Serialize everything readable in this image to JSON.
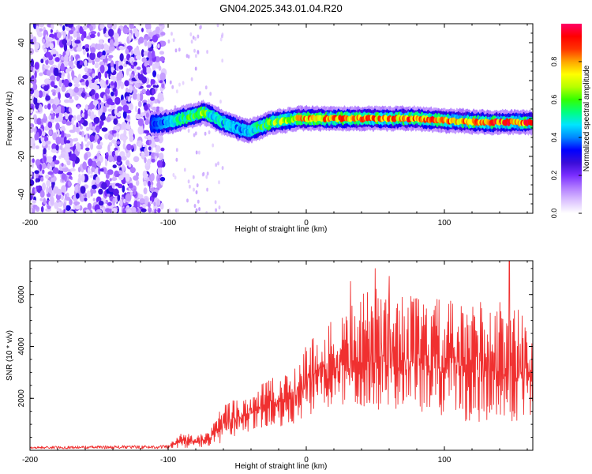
{
  "title": "GN04.2025.343.01.04.R20",
  "chart_data": [
    {
      "type": "heatmap",
      "title": "GN04.2025.343.01.04.R20",
      "xlabel": "Height of straight line (km)",
      "ylabel": "Frequency (Hz)",
      "xlim": [
        -200,
        164
      ],
      "ylim": [
        -50,
        50
      ],
      "x_ticks": [
        -200,
        -100,
        0,
        100
      ],
      "y_ticks": [
        -40,
        -20,
        0,
        20,
        40
      ],
      "colorbar": {
        "label": "Normalized spectral amplitude",
        "range": [
          0,
          1
        ],
        "ticks": [
          0.0,
          0.2,
          0.4,
          0.6,
          0.8
        ],
        "colors": [
          "#ffffff",
          "#dcc3ff",
          "#b27dff",
          "#7a2dff",
          "#3a0dd8",
          "#0000ff",
          "#0088ff",
          "#00e5ff",
          "#00ff7f",
          "#33ff00",
          "#b7ff00",
          "#ffff00",
          "#ffa500",
          "#ff3300",
          "#ff0000",
          "#ff0066"
        ]
      },
      "ridge": {
        "x": [
          -112,
          -100,
          -90,
          -80,
          -75,
          -70,
          -60,
          -50,
          -42,
          -35,
          -25,
          -15,
          -5,
          0,
          20,
          50,
          80,
          100,
          130,
          164
        ],
        "frequency": [
          -3,
          -2,
          0,
          2,
          3,
          2,
          -2,
          -5,
          -7,
          -5,
          -2,
          -1,
          0,
          0,
          0,
          0,
          0,
          -1,
          -2,
          -2
        ],
        "amplitude": [
          0.35,
          0.45,
          0.55,
          0.6,
          0.7,
          0.55,
          0.5,
          0.45,
          0.45,
          0.55,
          0.65,
          0.7,
          0.8,
          0.8,
          0.85,
          0.85,
          0.88,
          0.85,
          0.9,
          0.9
        ]
      },
      "noise_region": {
        "x_from": -200,
        "x_to": -103,
        "amplitude": [
          0.05,
          0.3
        ]
      }
    },
    {
      "type": "line",
      "xlabel": "Height of straight line (km)",
      "ylabel": "SNR (10 * v/v)",
      "xlim": [
        -200,
        164
      ],
      "ylim": [
        0,
        7300
      ],
      "x_ticks": [
        -200,
        -100,
        0,
        100
      ],
      "y_ticks": [
        2000,
        4000,
        6000
      ],
      "series": [
        {
          "name": "SNR",
          "color": "#f03030",
          "envelope_x": [
            -200,
            -100,
            -90,
            -80,
            -70,
            -60,
            -50,
            -40,
            -30,
            -20,
            -10,
            0,
            10,
            20,
            30,
            40,
            50,
            60,
            70,
            80,
            90,
            100,
            110,
            120,
            130,
            140,
            150,
            164
          ],
          "envelope_y": [
            150,
            200,
            700,
            600,
            700,
            1800,
            2100,
            2300,
            2900,
            2700,
            3300,
            4300,
            4700,
            5000,
            5500,
            6000,
            6300,
            6200,
            6000,
            6000,
            5800,
            5900,
            5600,
            5800,
            6000,
            5800,
            5600,
            5000
          ],
          "floor_y": [
            0,
            50,
            100,
            100,
            150,
            300,
            500,
            700,
            800,
            900,
            1000,
            1200,
            1500,
            1500,
            1600,
            1600,
            1500,
            1600,
            1500,
            1300,
            1300,
            1200,
            1100,
            1000,
            1000,
            1000,
            1100,
            1200
          ],
          "peaks": [
            {
              "x": 32,
              "y": 6500
            },
            {
              "x": 50,
              "y": 7000
            },
            {
              "x": 60,
              "y": 6700
            },
            {
              "x": 147,
              "y": 7300
            }
          ]
        }
      ]
    }
  ]
}
